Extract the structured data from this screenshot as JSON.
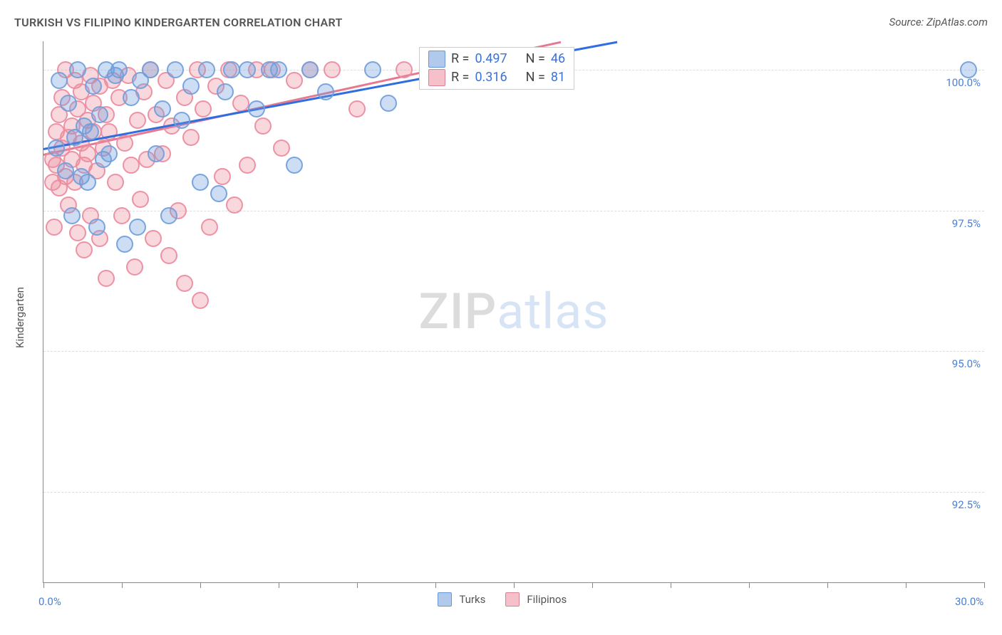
{
  "title": "TURKISH VS FILIPINO KINDERGARTEN CORRELATION CHART",
  "source": "Source: ZipAtlas.com",
  "ylabel": "Kindergarten",
  "watermark": {
    "part1": "ZIP",
    "part2": "atlas"
  },
  "chart": {
    "type": "scatter",
    "xlim": [
      0,
      30
    ],
    "ylim": [
      90.9,
      100.5
    ],
    "grid_color": "#dddddd",
    "axis_color": "#888888",
    "ytick_labels": [
      {
        "v": 92.5,
        "label": "92.5%"
      },
      {
        "v": 95.0,
        "label": "95.0%"
      },
      {
        "v": 97.5,
        "label": "97.5%"
      },
      {
        "v": 100.0,
        "label": "100.0%"
      }
    ],
    "xtick_positions": [
      0,
      2.5,
      5,
      7.5,
      10,
      12.5,
      15,
      17.5,
      20,
      22.5,
      25,
      27.5,
      30
    ],
    "xmin_label": {
      "v": 0,
      "label": "0.0%"
    },
    "xmax_label": {
      "v": 30,
      "label": "30.0%"
    },
    "series": [
      {
        "name": "Turks",
        "point_class": "pt-blue",
        "line_class": "trend-blue",
        "swatch_class": "sw-blue",
        "R": "0.497",
        "N": "46",
        "trend": {
          "x1": 0,
          "y1": 98.6,
          "x2": 18.3,
          "y2": 100.5
        },
        "points": [
          [
            0.4,
            98.6
          ],
          [
            0.5,
            99.8
          ],
          [
            0.7,
            98.2
          ],
          [
            0.8,
            99.4
          ],
          [
            0.9,
            97.4
          ],
          [
            1.0,
            98.8
          ],
          [
            1.1,
            100.0
          ],
          [
            1.2,
            98.1
          ],
          [
            1.3,
            99.0
          ],
          [
            1.4,
            98.0
          ],
          [
            1.5,
            98.9
          ],
          [
            1.6,
            99.7
          ],
          [
            1.7,
            97.2
          ],
          [
            1.8,
            99.2
          ],
          [
            1.9,
            98.4
          ],
          [
            2.0,
            100.0
          ],
          [
            2.1,
            98.5
          ],
          [
            2.3,
            99.9
          ],
          [
            2.4,
            100.0
          ],
          [
            2.6,
            96.9
          ],
          [
            2.8,
            99.5
          ],
          [
            3.0,
            97.2
          ],
          [
            3.1,
            99.8
          ],
          [
            3.4,
            100.0
          ],
          [
            3.6,
            98.5
          ],
          [
            3.8,
            99.3
          ],
          [
            4.0,
            97.4
          ],
          [
            4.2,
            100.0
          ],
          [
            4.4,
            99.1
          ],
          [
            4.7,
            99.7
          ],
          [
            5.0,
            98.0
          ],
          [
            5.2,
            100.0
          ],
          [
            5.6,
            97.8
          ],
          [
            5.8,
            99.6
          ],
          [
            6.0,
            100.0
          ],
          [
            6.5,
            100.0
          ],
          [
            6.8,
            99.3
          ],
          [
            7.2,
            100.0
          ],
          [
            7.5,
            100.0
          ],
          [
            8.0,
            98.3
          ],
          [
            8.5,
            100.0
          ],
          [
            9.0,
            99.6
          ],
          [
            10.5,
            100.0
          ],
          [
            11.0,
            99.4
          ],
          [
            12.5,
            100.0
          ],
          [
            29.5,
            100.0
          ]
        ]
      },
      {
        "name": "Filipinos",
        "point_class": "pt-pink",
        "line_class": "trend-pink",
        "swatch_class": "sw-pink",
        "R": "0.316",
        "N": "81",
        "trend": {
          "x1": 0,
          "y1": 98.5,
          "x2": 16.5,
          "y2": 100.5
        },
        "points": [
          [
            0.3,
            98.4
          ],
          [
            0.3,
            98.0
          ],
          [
            0.35,
            97.2
          ],
          [
            0.4,
            98.9
          ],
          [
            0.4,
            98.3
          ],
          [
            0.5,
            99.2
          ],
          [
            0.5,
            97.9
          ],
          [
            0.6,
            98.6
          ],
          [
            0.6,
            99.5
          ],
          [
            0.7,
            98.1
          ],
          [
            0.7,
            100.0
          ],
          [
            0.8,
            98.8
          ],
          [
            0.8,
            97.6
          ],
          [
            0.9,
            99.0
          ],
          [
            0.9,
            98.4
          ],
          [
            1.0,
            99.8
          ],
          [
            1.0,
            98.0
          ],
          [
            1.1,
            99.3
          ],
          [
            1.1,
            97.1
          ],
          [
            1.2,
            98.7
          ],
          [
            1.2,
            99.6
          ],
          [
            1.3,
            98.3
          ],
          [
            1.3,
            96.8
          ],
          [
            1.4,
            99.1
          ],
          [
            1.4,
            98.5
          ],
          [
            1.5,
            99.9
          ],
          [
            1.5,
            97.4
          ],
          [
            1.6,
            98.9
          ],
          [
            1.6,
            99.4
          ],
          [
            1.7,
            98.2
          ],
          [
            1.8,
            99.7
          ],
          [
            1.8,
            97.0
          ],
          [
            1.9,
            98.6
          ],
          [
            2.0,
            99.2
          ],
          [
            2.0,
            96.3
          ],
          [
            2.1,
            98.9
          ],
          [
            2.2,
            99.8
          ],
          [
            2.3,
            98.0
          ],
          [
            2.4,
            99.5
          ],
          [
            2.5,
            97.4
          ],
          [
            2.6,
            98.7
          ],
          [
            2.7,
            99.9
          ],
          [
            2.8,
            98.3
          ],
          [
            2.9,
            96.5
          ],
          [
            3.0,
            99.1
          ],
          [
            3.1,
            97.7
          ],
          [
            3.2,
            99.6
          ],
          [
            3.3,
            98.4
          ],
          [
            3.4,
            100.0
          ],
          [
            3.5,
            97.0
          ],
          [
            3.6,
            99.2
          ],
          [
            3.8,
            98.5
          ],
          [
            3.9,
            99.8
          ],
          [
            4.0,
            96.7
          ],
          [
            4.1,
            99.0
          ],
          [
            4.3,
            97.5
          ],
          [
            4.5,
            99.5
          ],
          [
            4.5,
            96.2
          ],
          [
            4.7,
            98.8
          ],
          [
            4.9,
            100.0
          ],
          [
            5.0,
            95.9
          ],
          [
            5.1,
            99.3
          ],
          [
            5.3,
            97.2
          ],
          [
            5.5,
            99.7
          ],
          [
            5.7,
            98.1
          ],
          [
            5.9,
            100.0
          ],
          [
            6.1,
            97.6
          ],
          [
            6.3,
            99.4
          ],
          [
            6.5,
            98.3
          ],
          [
            6.8,
            100.0
          ],
          [
            7.0,
            99.0
          ],
          [
            7.3,
            100.0
          ],
          [
            7.6,
            98.6
          ],
          [
            8.0,
            99.8
          ],
          [
            8.5,
            100.0
          ],
          [
            9.2,
            100.0
          ],
          [
            10.0,
            99.3
          ],
          [
            11.5,
            100.0
          ],
          [
            13.5,
            100.0
          ],
          [
            15.0,
            100.0
          ],
          [
            16.0,
            100.0
          ]
        ]
      }
    ],
    "legend_bottom": [
      {
        "swatch": "sw-blue",
        "label": "Turks"
      },
      {
        "swatch": "sw-pink",
        "label": "Filipinos"
      }
    ],
    "legend_static": {
      "R_prefix": "R =",
      "N_prefix": "N ="
    }
  }
}
